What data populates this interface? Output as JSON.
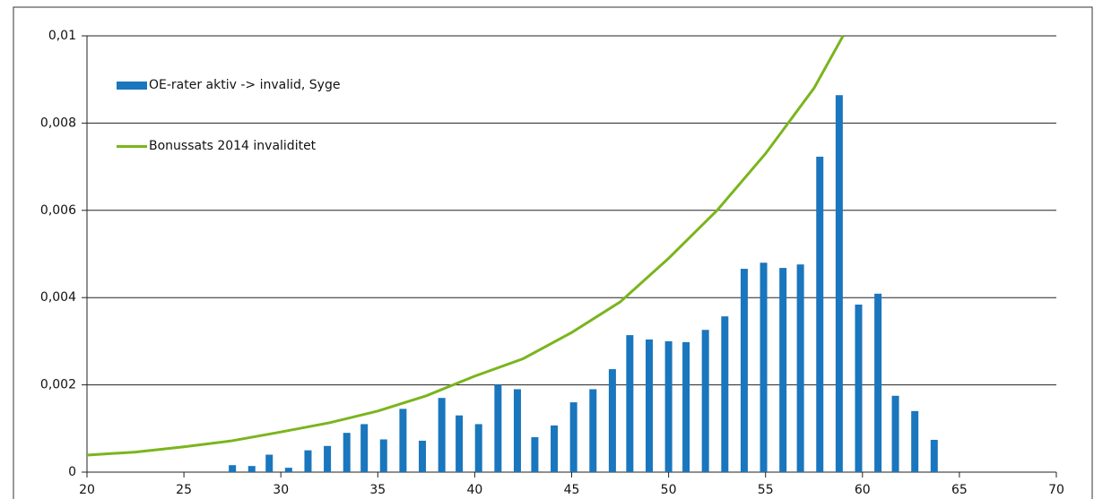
{
  "chart_data": {
    "type": "bar-line",
    "series": [
      {
        "name": "OE-rater aktiv -> invalid, Syge",
        "type": "bar",
        "color": "#1a76bd",
        "x": [
          27.5,
          28.5,
          29.4,
          30.4,
          31.4,
          32.4,
          33.4,
          34.3,
          35.3,
          36.3,
          37.3,
          38.3,
          39.2,
          40.2,
          41.2,
          42.2,
          43.1,
          44.1,
          45.1,
          46.1,
          47.1,
          48.0,
          49.0,
          50.0,
          50.9,
          51.9,
          52.9,
          53.9,
          54.9,
          55.9,
          56.8,
          57.8,
          58.8,
          59.8,
          60.8,
          61.7,
          62.7,
          63.7
        ],
        "values": [
          0.00016,
          0.00014,
          0.0004,
          0.0001,
          0.0005,
          0.0006,
          0.0009,
          0.0011,
          0.00075,
          0.00145,
          0.00072,
          0.0017,
          0.0013,
          0.0011,
          0.002,
          0.0019,
          0.0008,
          0.00107,
          0.0016,
          0.0019,
          0.00236,
          0.00314,
          0.00304,
          0.003,
          0.00298,
          0.00326,
          0.00357,
          0.00466,
          0.0048,
          0.00468,
          0.00476,
          0.00723,
          0.00864,
          0.00384,
          0.00409,
          0.00175,
          0.0014,
          0.00074
        ]
      },
      {
        "name": "Bonussats 2014 invaliditet",
        "type": "line",
        "color": "#7ab51d",
        "x": [
          20,
          22.5,
          25,
          27.5,
          30,
          32.5,
          35,
          37.5,
          40,
          42.5,
          45,
          47.5,
          50,
          52.5,
          55,
          57.5,
          59
        ],
        "values": [
          0.00039,
          0.00046,
          0.00058,
          0.00072,
          0.00092,
          0.00113,
          0.0014,
          0.00175,
          0.0022,
          0.0026,
          0.0032,
          0.0039,
          0.0049,
          0.006,
          0.0073,
          0.0088,
          0.01
        ]
      }
    ],
    "xlim": [
      20,
      70
    ],
    "xticks": [
      20,
      25,
      30,
      35,
      40,
      45,
      50,
      55,
      60,
      65,
      70
    ],
    "ylim": [
      0,
      0.01
    ],
    "yticks": [
      0,
      {
        "value": 0.002,
        "label": "0,002"
      },
      {
        "value": 0.004,
        "label": "0,004"
      },
      {
        "value": 0.006,
        "label": "0,006"
      },
      {
        "value": 0.008,
        "label": "0,008"
      },
      {
        "value": 0.01,
        "label": "0,01"
      }
    ],
    "grid": true,
    "legend": "top-left"
  }
}
